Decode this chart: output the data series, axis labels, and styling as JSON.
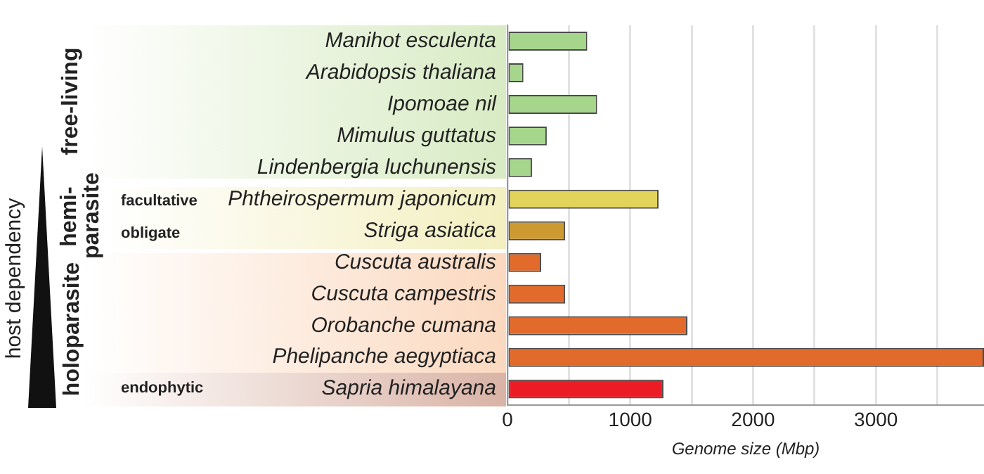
{
  "chart_data": {
    "type": "bar",
    "orientation": "horizontal",
    "xlabel": "Genome size (Mbp)",
    "categories": [
      "Manihot esculenta",
      "Arabidopsis thaliana",
      "Ipomoae nil",
      "Mimulus guttatus",
      "Lindenbergia luchunensis",
      "Phtheirospermum japonicum",
      "Striga asiatica",
      "Cuscuta australis",
      "Cuscuta campestris",
      "Orobanche cumana",
      "Phelipanche aegyptiaca",
      "Sapria himalayana"
    ],
    "values": [
      650,
      130,
      730,
      320,
      200,
      1230,
      470,
      275,
      470,
      1465,
      3880,
      1270
    ],
    "colors": [
      "#a6d68c",
      "#a6d68c",
      "#a6d68c",
      "#a6d68c",
      "#a6d68c",
      "#e2d45a",
      "#cc9a30",
      "#e26a2a",
      "#e26a2a",
      "#e26a2a",
      "#e26a2a",
      "#ec1c24"
    ],
    "xlim": [
      0,
      3880
    ],
    "xticks": [
      0,
      {
        "value": 500,
        "label": null
      },
      1000,
      {
        "value": 1500,
        "label": null
      },
      2000,
      {
        "value": 2500,
        "label": null
      },
      3000,
      {
        "value": 3500,
        "label": null
      }
    ],
    "grid": "x",
    "annotations": [
      "free-living",
      "hemi-parasite",
      "holoparasite",
      "facultative",
      "obligate",
      "endophytic",
      "host dependency"
    ]
  }
}
